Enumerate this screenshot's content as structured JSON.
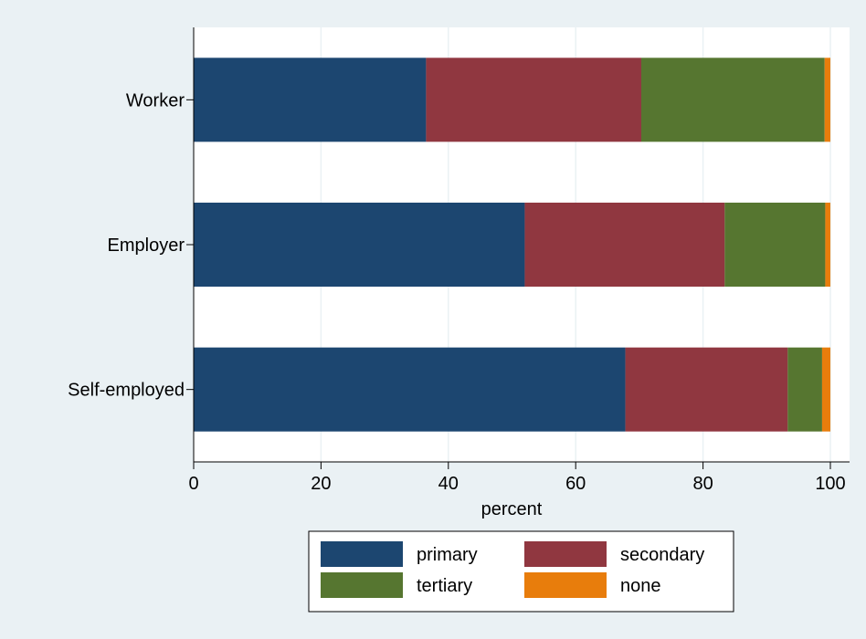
{
  "chart_data": {
    "type": "bar",
    "orientation": "horizontal",
    "stacked": true,
    "categories": [
      "Worker",
      "Employer",
      "Self-employed"
    ],
    "series": [
      {
        "name": "primary",
        "color": "#1c4670",
        "values": [
          36.5,
          52.0,
          67.8
        ]
      },
      {
        "name": "secondary",
        "color": "#903740",
        "values": [
          33.8,
          31.4,
          25.5
        ]
      },
      {
        "name": "tertiary",
        "color": "#567630",
        "values": [
          28.8,
          15.8,
          5.4
        ]
      },
      {
        "name": "none",
        "color": "#e87d0c",
        "values": [
          0.9,
          0.8,
          1.3
        ]
      }
    ],
    "xlabel": "percent",
    "xlim": [
      0,
      100
    ],
    "xticks": [
      "0",
      "20",
      "40",
      "60",
      "80",
      "100"
    ],
    "grid": true,
    "legend_position": "bottom",
    "colors": {
      "background": "#eaf1f4",
      "plot_background": "#ffffff",
      "grid": "#eaf1f4"
    }
  }
}
